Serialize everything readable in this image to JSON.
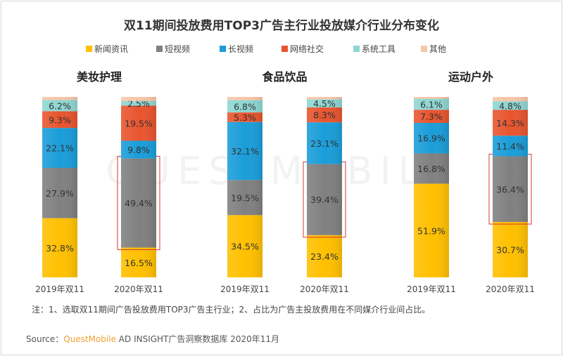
{
  "chart_data": {
    "type": "bar",
    "stacked": true,
    "title": "双11期间投放费用TOP3广告主行业投放媒介行业分布变化",
    "legend_position": "top",
    "series_names": [
      "新闻资讯",
      "短视频",
      "长视频",
      "网络社交",
      "系统工具",
      "其他"
    ],
    "colors": [
      "#FFC000",
      "#808080",
      "#1A9DD9",
      "#E8552F",
      "#8ED6D2",
      "#F6C6A8"
    ],
    "ylim": [
      0,
      100
    ],
    "grid": false,
    "panels": [
      {
        "title": "美妆护理",
        "categories": [
          "2019年双11",
          "2020年双11"
        ],
        "values": [
          [
            32.8,
            27.9,
            22.1,
            9.3,
            6.2,
            1.7
          ],
          [
            16.5,
            49.4,
            9.8,
            19.5,
            2.5,
            2.3
          ]
        ],
        "highlight": {
          "category": 1,
          "series": 1
        }
      },
      {
        "title": "食品饮品",
        "categories": [
          "2019年双11",
          "2020年双11"
        ],
        "values": [
          [
            34.5,
            19.5,
            32.1,
            5.3,
            6.8,
            1.8
          ],
          [
            23.4,
            39.4,
            23.1,
            8.3,
            4.5,
            1.3
          ]
        ],
        "highlight": {
          "category": 1,
          "series": 1
        }
      },
      {
        "title": "运动户外",
        "categories": [
          "2019年双11",
          "2020年双11"
        ],
        "values": [
          [
            51.9,
            16.8,
            16.9,
            7.3,
            6.1,
            1.0
          ],
          [
            30.7,
            36.4,
            11.4,
            14.3,
            4.8,
            2.4
          ]
        ],
        "highlight": {
          "category": 1,
          "series": 1
        }
      }
    ]
  },
  "footer": {
    "note": "注：1、选取双11期间广告投放费用TOP3广告主行业；2、占比为广告主投放费用在不同媒介行业间占比。",
    "source_prefix": "Source：",
    "source_brand": "QuestMobile",
    "source_rest": " AD INSIGHT广告洞察数据库 2020年11月"
  },
  "watermark": "QUESTMOBILE"
}
